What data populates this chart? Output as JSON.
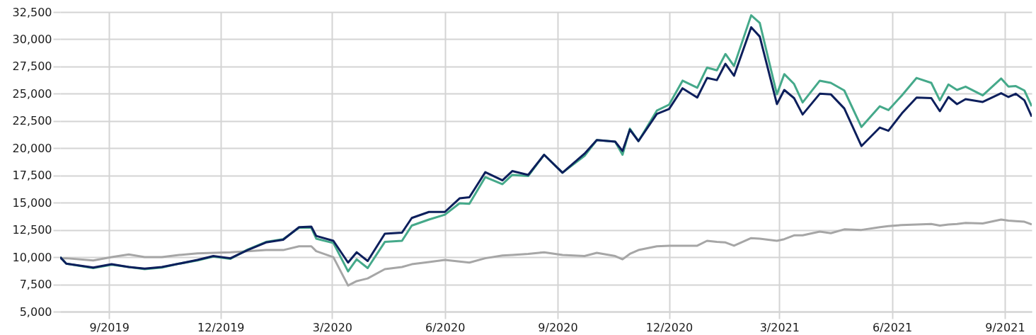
{
  "chart_data": {
    "type": "line",
    "x": [
      "2019-07-23",
      "2019-07-28",
      "2019-08-19",
      "2019-09-03",
      "2019-09-17",
      "2019-09-30",
      "2019-10-14",
      "2019-10-28",
      "2019-11-12",
      "2019-11-25",
      "2019-12-09",
      "2019-12-23",
      "2020-01-07",
      "2020-01-21",
      "2020-02-03",
      "2020-02-13",
      "2020-02-17",
      "2020-03-02",
      "2020-03-14",
      "2020-03-21",
      "2020-03-30",
      "2020-04-13",
      "2020-04-27",
      "2020-05-05",
      "2020-05-19",
      "2020-06-01",
      "2020-06-13",
      "2020-06-21",
      "2020-07-04",
      "2020-07-18",
      "2020-07-26",
      "2020-08-08",
      "2020-08-21",
      "2020-09-05",
      "2020-09-23",
      "2020-10-03",
      "2020-10-18",
      "2020-10-24",
      "2020-10-30",
      "2020-11-06",
      "2020-11-21",
      "2020-12-01",
      "2020-12-12",
      "2020-12-24",
      "2021-01-01",
      "2021-01-09",
      "2021-01-16",
      "2021-01-23",
      "2021-02-06",
      "2021-02-13",
      "2021-02-27",
      "2021-03-05",
      "2021-03-13",
      "2021-03-20",
      "2021-04-03",
      "2021-04-12",
      "2021-04-23",
      "2021-05-07",
      "2021-05-22",
      "2021-05-29",
      "2021-06-09",
      "2021-06-21",
      "2021-07-03",
      "2021-07-10",
      "2021-07-17",
      "2021-07-24",
      "2021-07-31",
      "2021-08-14",
      "2021-08-29",
      "2021-09-04",
      "2021-09-10",
      "2021-09-17",
      "2021-09-23"
    ],
    "series": [
      {
        "color": "#a6a6a6",
        "values": [
          9900,
          9900,
          9700,
          10000,
          10250,
          10000,
          10000,
          10200,
          10350,
          10400,
          10450,
          10550,
          10650,
          10650,
          11000,
          11000,
          10550,
          10000,
          7400,
          7800,
          8050,
          8900,
          9100,
          9350,
          9550,
          9750,
          9600,
          9500,
          9900,
          10150,
          10200,
          10300,
          10450,
          10200,
          10100,
          10400,
          10100,
          9800,
          10300,
          10650,
          11000,
          11050,
          11050,
          11050,
          11500,
          11400,
          11350,
          11050,
          11750,
          11700,
          11500,
          11650,
          12000,
          12000,
          12350,
          12200,
          12550,
          12500,
          12750,
          12850,
          12950,
          13000,
          13050,
          12900,
          13000,
          13050,
          13150,
          13100,
          13450,
          13350,
          13300,
          13250,
          13000
        ]
      },
      {
        "color": "#45a98a",
        "values": [
          10000,
          9400,
          9000,
          9300,
          9100,
          8900,
          9050,
          9400,
          9700,
          10050,
          9850,
          10700,
          11400,
          11650,
          12700,
          12700,
          11700,
          11300,
          8700,
          9800,
          9000,
          11400,
          11500,
          12900,
          13450,
          13900,
          14950,
          14900,
          17350,
          16700,
          17550,
          17450,
          19400,
          17750,
          19300,
          20750,
          20600,
          19400,
          21800,
          20650,
          23450,
          24000,
          26200,
          25550,
          27400,
          27150,
          28650,
          27550,
          32200,
          31500,
          24950,
          26800,
          25900,
          24200,
          26200,
          26000,
          25300,
          21950,
          23850,
          23500,
          24850,
          26450,
          26000,
          24400,
          25850,
          25350,
          25650,
          24850,
          26400,
          25650,
          25700,
          25300,
          23850
        ]
      },
      {
        "color": "#0d1f5c",
        "values": [
          10000,
          9400,
          9050,
          9350,
          9100,
          8950,
          9100,
          9400,
          9750,
          10100,
          9900,
          10650,
          11350,
          11600,
          12750,
          12800,
          11950,
          11500,
          9500,
          10450,
          9650,
          12150,
          12250,
          13600,
          14150,
          14150,
          15400,
          15500,
          17800,
          17050,
          17900,
          17550,
          19400,
          17750,
          19500,
          20750,
          20600,
          19750,
          21700,
          20650,
          23150,
          23600,
          25500,
          24650,
          26450,
          26250,
          27750,
          26650,
          31100,
          30250,
          24050,
          25350,
          24600,
          23100,
          25000,
          24950,
          23650,
          20200,
          21900,
          21600,
          23200,
          24650,
          24600,
          23400,
          24700,
          24050,
          24500,
          24250,
          25050,
          24700,
          25000,
          24400,
          22900
        ]
      }
    ],
    "xlim": [
      "2019-07-23",
      "2021-09-23"
    ],
    "xticks": [
      {
        "value": "2019-09-01",
        "label": "9/2019"
      },
      {
        "value": "2019-12-01",
        "label": "12/2019"
      },
      {
        "value": "2020-03-01",
        "label": "3/2020"
      },
      {
        "value": "2020-06-01",
        "label": "6/2020"
      },
      {
        "value": "2020-09-01",
        "label": "9/2020"
      },
      {
        "value": "2020-12-01",
        "label": "12/2020"
      },
      {
        "value": "2021-03-01",
        "label": "3/2021"
      },
      {
        "value": "2021-06-01",
        "label": "6/2021"
      },
      {
        "value": "2021-09-01",
        "label": "9/2021"
      }
    ],
    "ylim": [
      5000,
      32500
    ],
    "yticks": [
      {
        "value": 5000,
        "label": "5,000"
      },
      {
        "value": 7500,
        "label": "7,500"
      },
      {
        "value": 10000,
        "label": "10,000"
      },
      {
        "value": 12500,
        "label": "12,500"
      },
      {
        "value": 15000,
        "label": "15,000"
      },
      {
        "value": 17500,
        "label": "17,500"
      },
      {
        "value": 20000,
        "label": "20,000"
      },
      {
        "value": 22500,
        "label": "22,500"
      },
      {
        "value": 25000,
        "label": "25,000"
      },
      {
        "value": 27500,
        "label": "27,500"
      },
      {
        "value": 30000,
        "label": "30,000"
      },
      {
        "value": 32500,
        "label": "32,500"
      }
    ],
    "grid": true
  }
}
